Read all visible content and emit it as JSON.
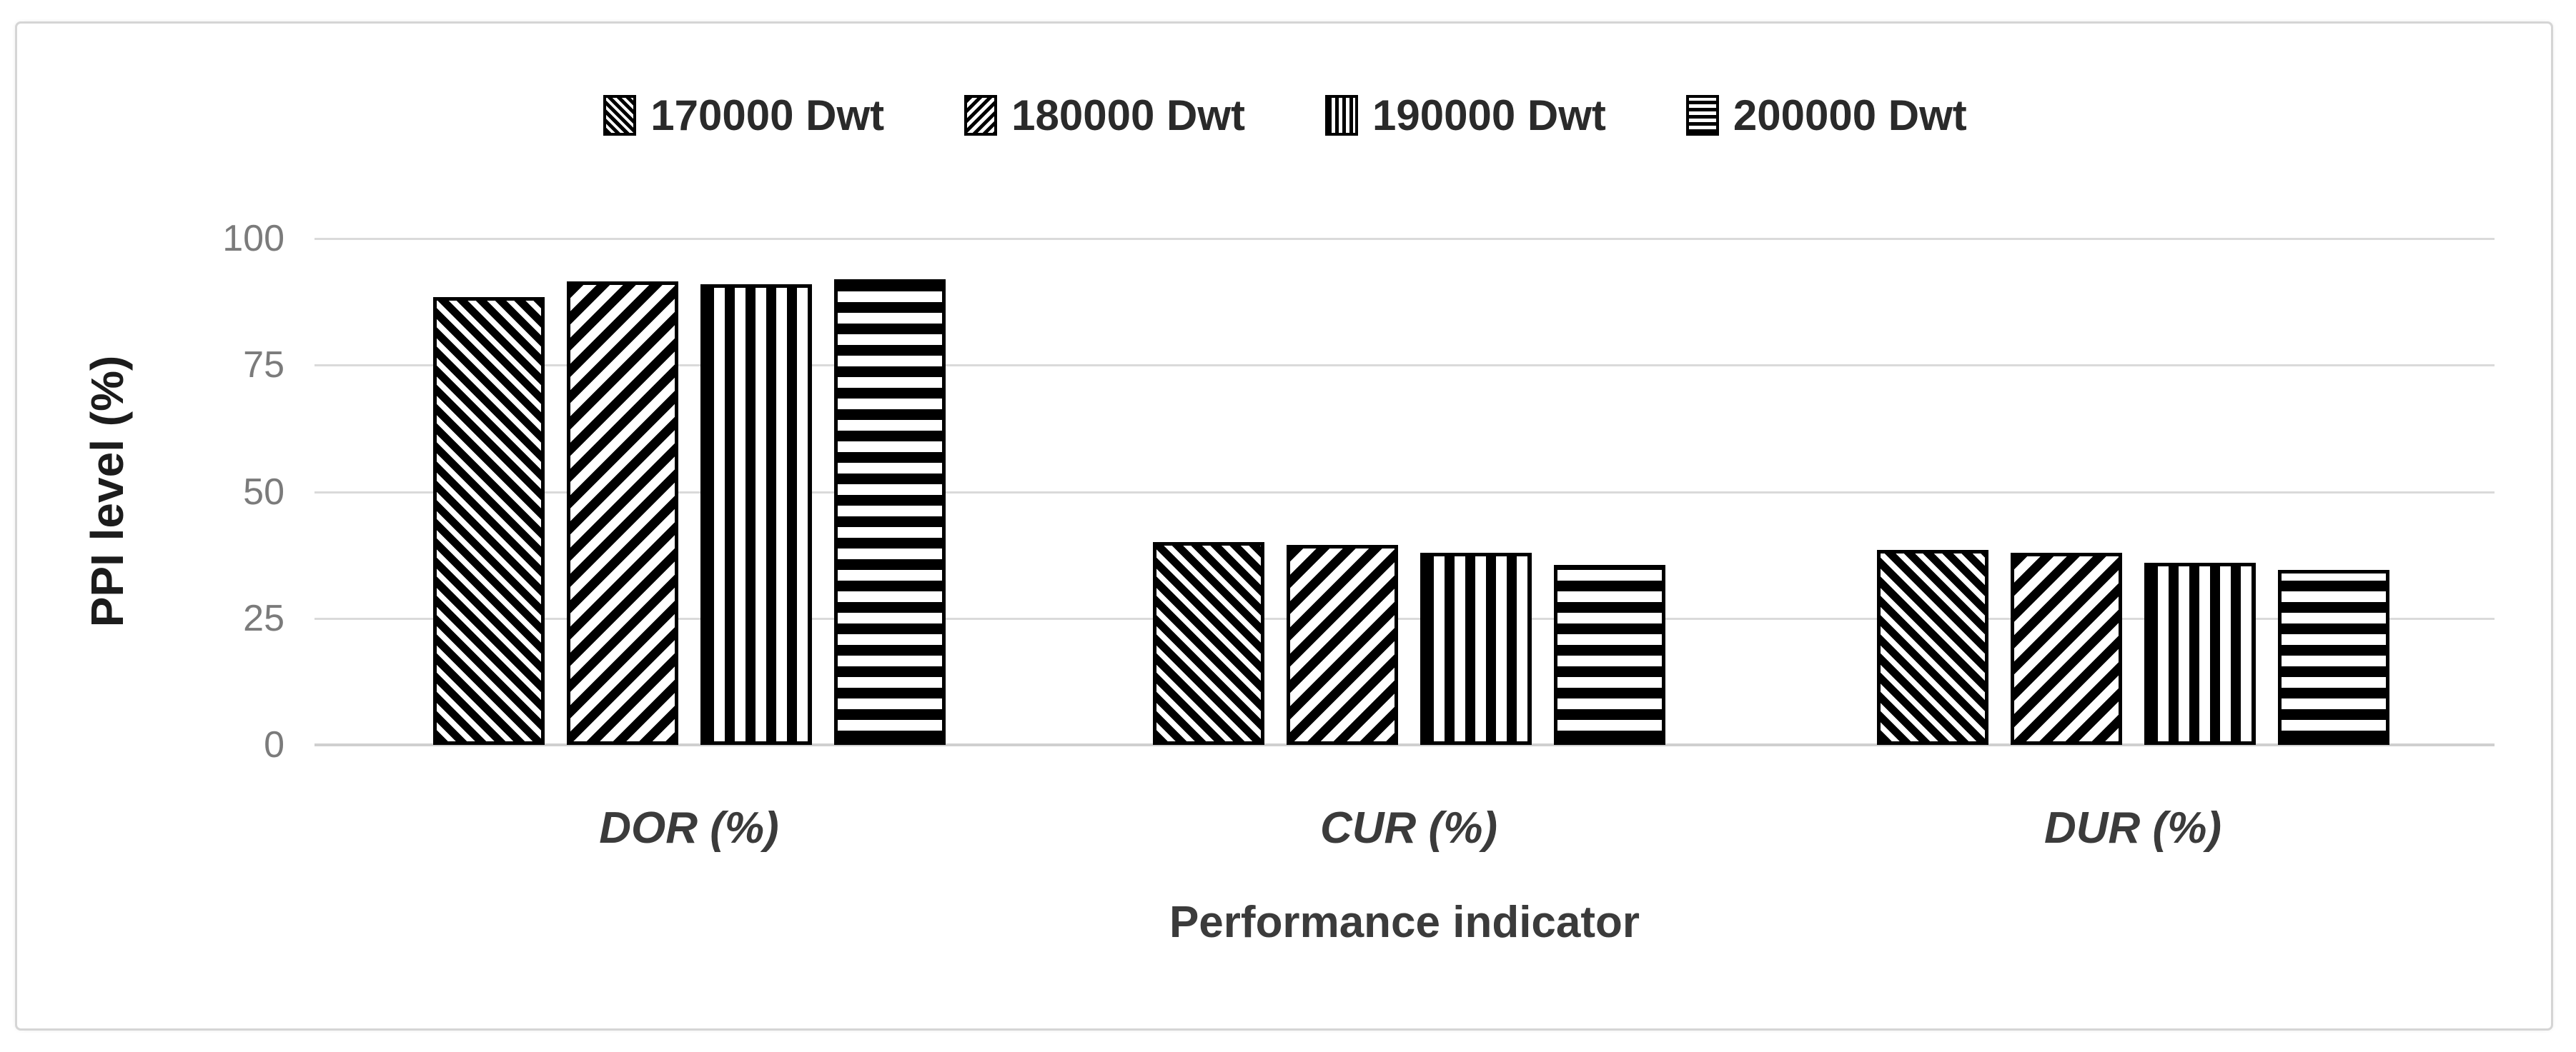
{
  "figure": {
    "background_color": "#ffffff",
    "border_color": "#d5d5d5",
    "bar_outline_color": "#000000",
    "gridline_color": "#dadada",
    "axis_line_color": "#cfcfcf",
    "tick_text_color": "#7b7b7b",
    "label_text_color": "#3b3b3b",
    "legend_text_color": "#2a2a2a"
  },
  "chart_data": {
    "type": "bar",
    "title": "",
    "xlabel": "Performance indicator",
    "ylabel": "PPI level (%)",
    "categories": [
      "DOR (%)",
      "CUR (%)",
      "DUR (%)"
    ],
    "series": [
      {
        "name": "170000 Dwt",
        "pattern": "diagonal-down",
        "values": [
          88.5,
          40,
          38.5
        ]
      },
      {
        "name": "180000 Dwt",
        "pattern": "diagonal-up",
        "values": [
          91.5,
          39.5,
          38
        ]
      },
      {
        "name": "190000 Dwt",
        "pattern": "vertical",
        "values": [
          91,
          38,
          36
        ]
      },
      {
        "name": "200000 Dwt",
        "pattern": "horizontal",
        "values": [
          92,
          35.5,
          34.5
        ]
      }
    ],
    "y_ticks": [
      0,
      25,
      50,
      75,
      100
    ],
    "ylim": [
      0,
      100
    ],
    "grid": true,
    "legend_position": "top",
    "bar_fill_colors": {
      "stripe": "#000000",
      "background": "#ffffff"
    }
  }
}
